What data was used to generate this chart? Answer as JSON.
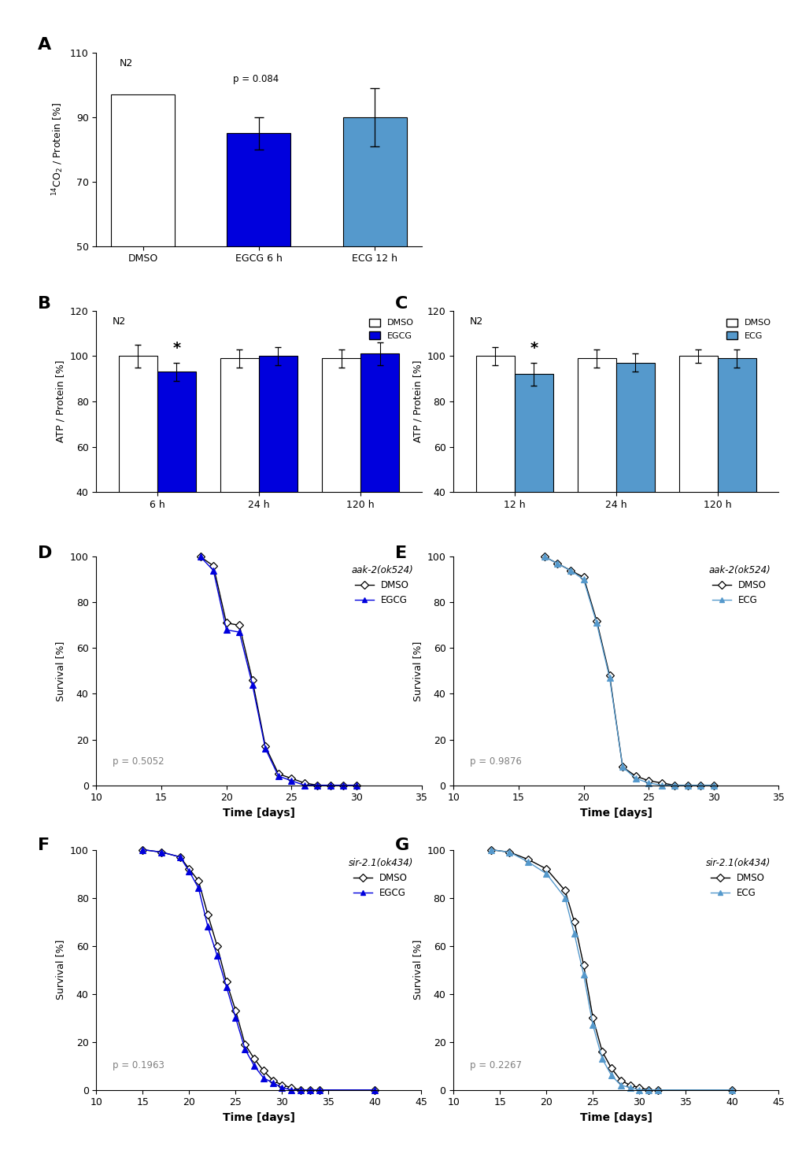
{
  "panel_A": {
    "categories": [
      "DMSO",
      "EGCG 6 h",
      "ECG 12 h"
    ],
    "values": [
      97,
      85,
      90
    ],
    "errors": [
      0,
      5,
      9
    ],
    "colors": [
      "#ffffff",
      "#0000dd",
      "#5599cc"
    ],
    "ylabel": "$^{14}$CO$_2$ / Protein [%]",
    "ylim": [
      50,
      110
    ],
    "yticks": [
      50,
      70,
      90,
      110
    ],
    "label": "N2",
    "pval_text": "p = 0.084"
  },
  "panel_B": {
    "groups": [
      "6 h",
      "24 h",
      "120 h"
    ],
    "dmso_values": [
      100,
      99,
      99
    ],
    "dmso_errors": [
      5,
      4,
      4
    ],
    "egcg_values": [
      93,
      100,
      101
    ],
    "egcg_errors": [
      4,
      4,
      5
    ],
    "egcg_color": "#0000dd",
    "ylabel": "ATP / Protein [%]",
    "ylim": [
      40,
      120
    ],
    "yticks": [
      40,
      60,
      80,
      100,
      120
    ],
    "label": "N2"
  },
  "panel_C": {
    "groups": [
      "12 h",
      "24 h",
      "120 h"
    ],
    "dmso_values": [
      100,
      99,
      100
    ],
    "dmso_errors": [
      4,
      4,
      3
    ],
    "ecg_values": [
      92,
      97,
      99
    ],
    "ecg_errors": [
      5,
      4,
      4
    ],
    "ecg_color": "#5599cc",
    "ylabel": "ATP / Protein [%]",
    "ylim": [
      40,
      120
    ],
    "yticks": [
      40,
      60,
      80,
      100,
      120
    ],
    "label": "N2"
  },
  "panel_D": {
    "title": "aak-2(ok524)",
    "pval": "p = 0.5052",
    "xlabel": "Time [days]",
    "ylabel": "Survival [%]",
    "xlim": [
      10,
      35
    ],
    "ylim": [
      0,
      100
    ],
    "xticks": [
      10,
      15,
      20,
      25,
      30,
      35
    ],
    "yticks": [
      0,
      20,
      40,
      60,
      80,
      100
    ],
    "dmso_x": [
      18,
      19,
      20,
      21,
      22,
      23,
      24,
      25,
      26,
      27,
      28,
      29,
      30
    ],
    "dmso_y": [
      100,
      96,
      71,
      70,
      46,
      17,
      5,
      3,
      1,
      0,
      0,
      0,
      0
    ],
    "treat_x": [
      18,
      19,
      20,
      21,
      22,
      23,
      24,
      25,
      26,
      27,
      28,
      29,
      30
    ],
    "treat_y": [
      100,
      94,
      68,
      67,
      44,
      16,
      4,
      2,
      0,
      0,
      0,
      0,
      0
    ],
    "treat_color": "#0000dd",
    "treat_label": "EGCG"
  },
  "panel_E": {
    "title": "aak-2(ok524)",
    "pval": "p = 0.9876",
    "xlabel": "Time [days]",
    "ylabel": "Survival [%]",
    "xlim": [
      10,
      35
    ],
    "ylim": [
      0,
      100
    ],
    "xticks": [
      10,
      15,
      20,
      25,
      30,
      35
    ],
    "yticks": [
      0,
      20,
      40,
      60,
      80,
      100
    ],
    "dmso_x": [
      17,
      18,
      19,
      20,
      21,
      22,
      23,
      24,
      25,
      26,
      27,
      28,
      29,
      30
    ],
    "dmso_y": [
      100,
      97,
      94,
      91,
      72,
      48,
      8,
      4,
      2,
      1,
      0,
      0,
      0,
      0
    ],
    "treat_x": [
      17,
      18,
      19,
      20,
      21,
      22,
      23,
      24,
      25,
      26,
      27,
      28,
      29,
      30
    ],
    "treat_y": [
      100,
      97,
      94,
      90,
      71,
      47,
      8,
      3,
      1,
      0,
      0,
      0,
      0,
      0
    ],
    "treat_color": "#5599cc",
    "treat_label": "ECG"
  },
  "panel_F": {
    "title": "sir-2.1(ok434)",
    "pval": "p = 0.1963",
    "xlabel": "Time [days]",
    "ylabel": "Survival [%]",
    "xlim": [
      10,
      45
    ],
    "ylim": [
      0,
      100
    ],
    "xticks": [
      10,
      15,
      20,
      25,
      30,
      35,
      40,
      45
    ],
    "yticks": [
      0,
      20,
      40,
      60,
      80,
      100
    ],
    "dmso_x": [
      15,
      17,
      19,
      20,
      21,
      22,
      23,
      24,
      25,
      26,
      27,
      28,
      29,
      30,
      31,
      32,
      33,
      34,
      40
    ],
    "dmso_y": [
      100,
      99,
      97,
      92,
      87,
      73,
      60,
      45,
      33,
      19,
      13,
      8,
      4,
      2,
      1,
      0,
      0,
      0,
      0
    ],
    "treat_x": [
      15,
      17,
      19,
      20,
      21,
      22,
      23,
      24,
      25,
      26,
      27,
      28,
      29,
      30,
      31,
      32,
      33,
      34,
      40
    ],
    "treat_y": [
      100,
      99,
      97,
      91,
      84,
      68,
      56,
      43,
      30,
      17,
      10,
      5,
      3,
      1,
      0,
      0,
      0,
      0,
      0
    ],
    "treat_color": "#0000dd",
    "treat_label": "EGCG"
  },
  "panel_G": {
    "title": "sir-2.1(ok434)",
    "pval": "p = 0.2267",
    "xlabel": "Time [days]",
    "ylabel": "Survival [%]",
    "xlim": [
      10,
      45
    ],
    "ylim": [
      0,
      100
    ],
    "xticks": [
      10,
      15,
      20,
      25,
      30,
      35,
      40,
      45
    ],
    "yticks": [
      0,
      20,
      40,
      60,
      80,
      100
    ],
    "dmso_x": [
      14,
      16,
      18,
      20,
      22,
      23,
      24,
      25,
      26,
      27,
      28,
      29,
      30,
      31,
      32,
      40
    ],
    "dmso_y": [
      100,
      99,
      96,
      92,
      83,
      70,
      52,
      30,
      16,
      9,
      4,
      2,
      1,
      0,
      0,
      0
    ],
    "treat_x": [
      14,
      16,
      18,
      20,
      22,
      23,
      24,
      25,
      26,
      27,
      28,
      29,
      30,
      31,
      32,
      40
    ],
    "treat_y": [
      100,
      99,
      95,
      90,
      80,
      65,
      48,
      27,
      13,
      6,
      2,
      1,
      0,
      0,
      0,
      0
    ],
    "treat_color": "#5599cc",
    "treat_label": "ECG"
  }
}
